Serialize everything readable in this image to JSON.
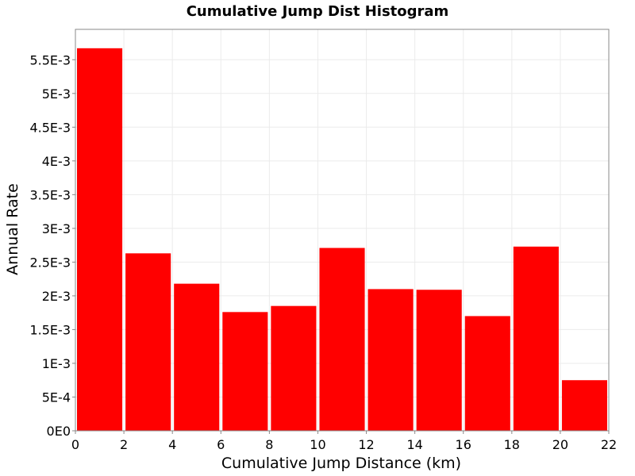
{
  "chart_data": {
    "type": "bar",
    "title": "Cumulative Jump Dist Histogram",
    "xlabel": "Cumulative Jump Distance (km)",
    "ylabel": "Annual Rate",
    "xlim": [
      0,
      22
    ],
    "ylim": [
      0,
      0.00595
    ],
    "x_ticks": [
      0,
      2,
      4,
      6,
      8,
      10,
      12,
      14,
      16,
      18,
      20,
      22
    ],
    "y_ticks": [
      "0E0",
      "5E-4",
      "1E-3",
      "1.5E-3",
      "2E-3",
      "2.5E-3",
      "3E-3",
      "3.5E-3",
      "4E-3",
      "4.5E-3",
      "5E-3",
      "5.5E-3"
    ],
    "bins": [
      {
        "x0": 0,
        "x1": 2,
        "value": 0.00567
      },
      {
        "x0": 2,
        "x1": 4,
        "value": 0.00263
      },
      {
        "x0": 4,
        "x1": 6,
        "value": 0.00218
      },
      {
        "x0": 6,
        "x1": 8,
        "value": 0.00176
      },
      {
        "x0": 8,
        "x1": 10,
        "value": 0.00185
      },
      {
        "x0": 10,
        "x1": 12,
        "value": 0.00271
      },
      {
        "x0": 12,
        "x1": 14,
        "value": 0.0021
      },
      {
        "x0": 14,
        "x1": 16,
        "value": 0.00209
      },
      {
        "x0": 16,
        "x1": 18,
        "value": 0.0017
      },
      {
        "x0": 18,
        "x1": 20,
        "value": 0.00273
      },
      {
        "x0": 20,
        "x1": 22,
        "value": 0.00075
      }
    ],
    "grid": true,
    "colors": {
      "bar": "#ff0000",
      "grid": "#ebebeb",
      "axis": "#888888"
    }
  }
}
